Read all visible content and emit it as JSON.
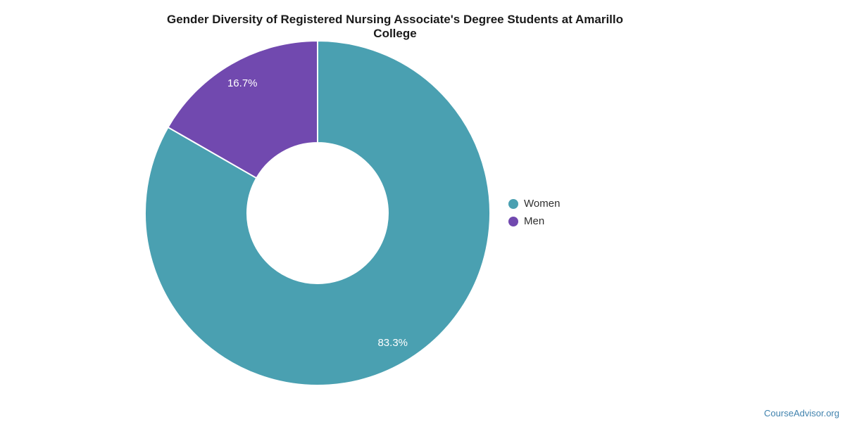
{
  "title": "Gender Diversity of Registered Nursing Associate's Degree Students at Amarillo College",
  "chart_data": {
    "type": "pie",
    "subtype": "donut",
    "hole_ratio": 0.41,
    "categories": [
      "Women",
      "Men"
    ],
    "values": [
      83.3,
      16.7
    ],
    "value_labels": [
      "83.3%",
      "16.7%"
    ],
    "colors": [
      "#4AA0B1",
      "#7149AF"
    ],
    "slice_border_color": "#ffffff",
    "label_text_color": "#ffffff",
    "start_angle_deg": 0,
    "direction": "clockwise",
    "legend_position": "right",
    "title": "Gender Diversity of Registered Nursing Associate's Degree Students at Amarillo College"
  },
  "legend": {
    "entries": [
      {
        "label": "Women",
        "color": "#4AA0B1"
      },
      {
        "label": "Men",
        "color": "#7149AF"
      }
    ]
  },
  "footer": {
    "text": "CourseAdvisor.org",
    "color": "#4183AE"
  }
}
